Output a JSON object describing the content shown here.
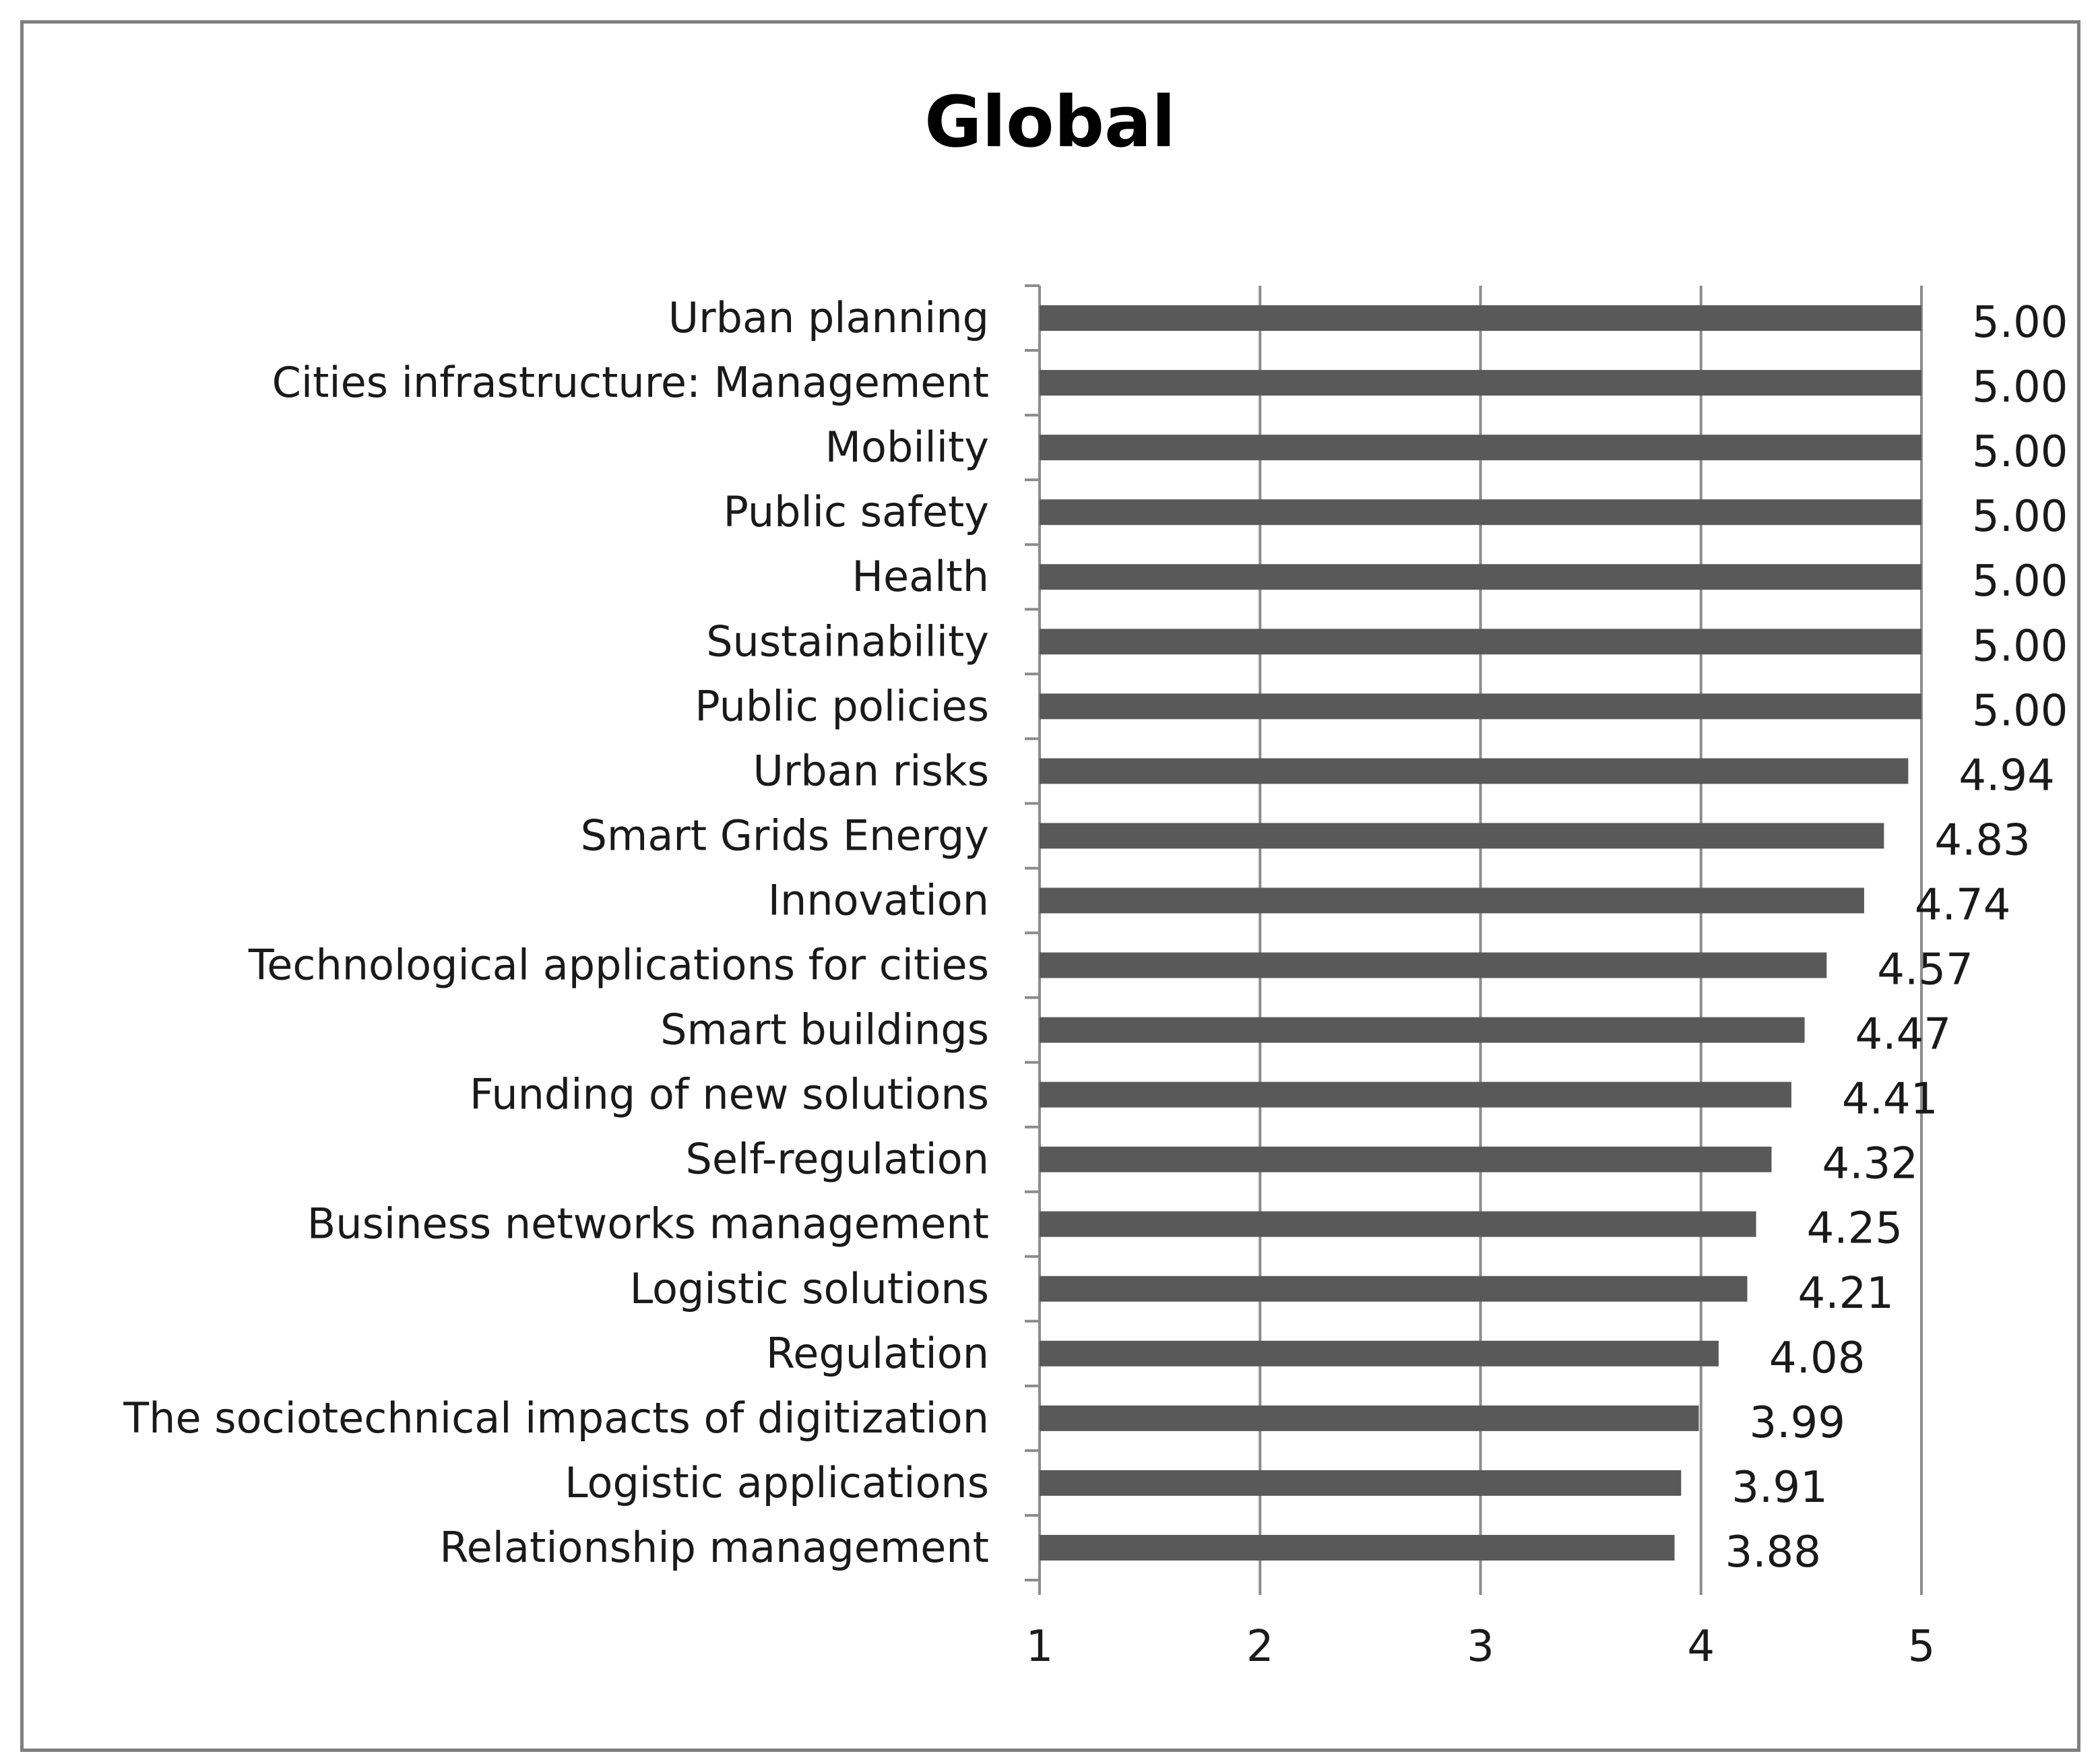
{
  "chart_data": {
    "type": "bar",
    "orientation": "horizontal",
    "title": "Global",
    "xlabel": "",
    "ylabel": "",
    "xlim": [
      1,
      5
    ],
    "xticks": [
      1,
      2,
      3,
      4,
      5
    ],
    "grid": true,
    "bar_color": "#595959",
    "categories": [
      "Urban planning",
      "Cities infrastructure: Management",
      "Mobility",
      "Public safety",
      "Health",
      "Sustainability",
      "Public policies",
      "Urban risks",
      "Smart Grids Energy",
      "Innovation",
      "Technological applications for cities",
      "Smart buildings",
      "Funding of new solutions",
      "Self-regulation",
      "Business networks management",
      "Logistic solutions",
      "Regulation",
      "The sociotechnical impacts of digitization",
      "Logistic applications",
      "Relationship management"
    ],
    "values": [
      5.0,
      5.0,
      5.0,
      5.0,
      5.0,
      5.0,
      5.0,
      4.94,
      4.83,
      4.74,
      4.57,
      4.47,
      4.41,
      4.32,
      4.25,
      4.21,
      4.08,
      3.99,
      3.91,
      3.88
    ],
    "value_labels": [
      "5.00",
      "5.00",
      "5.00",
      "5.00",
      "5.00",
      "5.00",
      "5.00",
      "4.94",
      "4.83",
      "4.74",
      "4.57",
      "4.47",
      "4.41",
      "4.32",
      "4.25",
      "4.21",
      "4.08",
      "3.99",
      "3.91",
      "3.88"
    ]
  }
}
